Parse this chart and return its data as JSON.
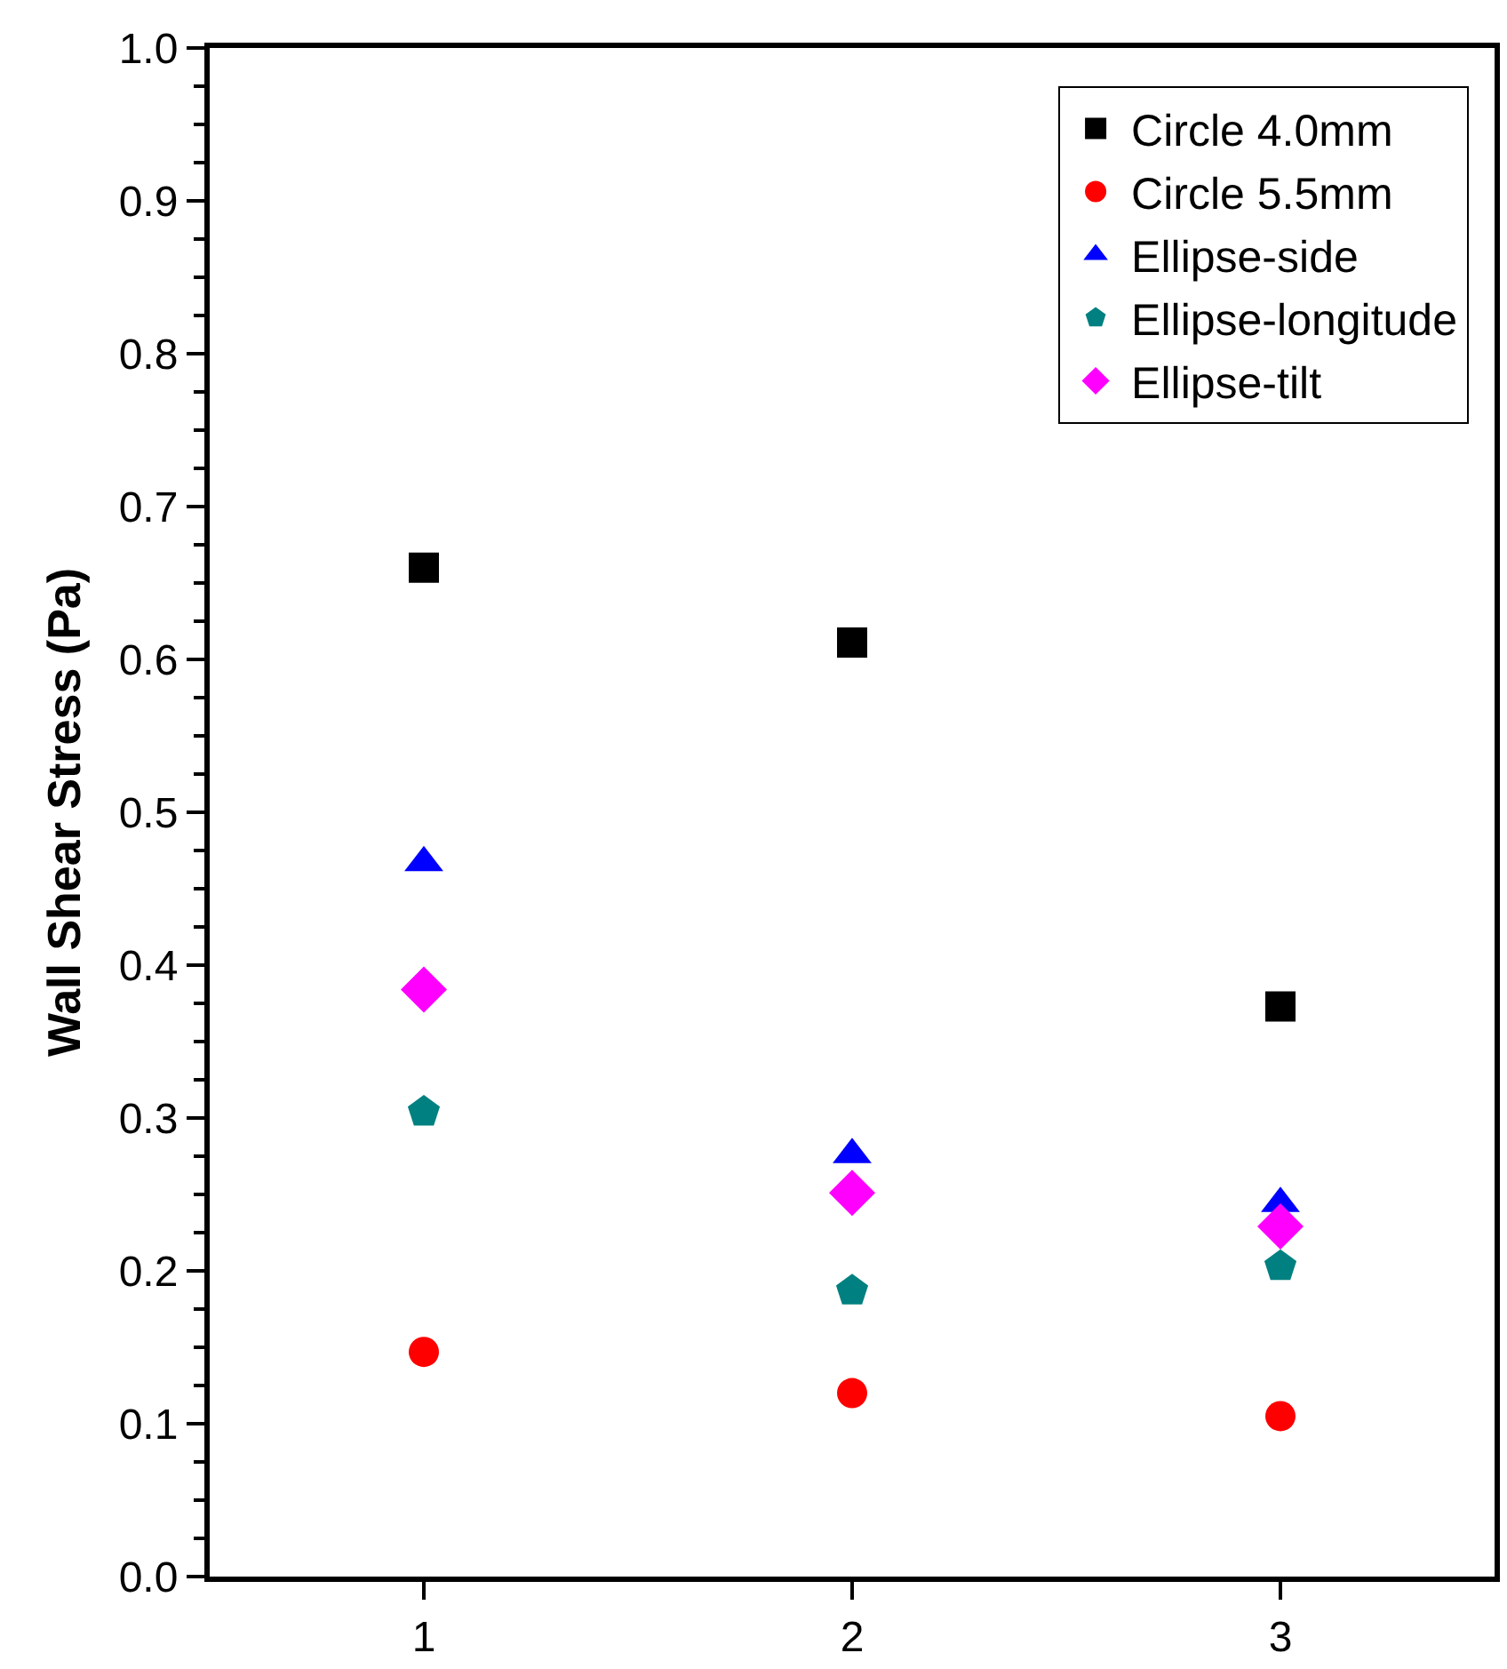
{
  "chart_data": {
    "type": "scatter",
    "ylabel": "Wall Shear Stress (Pa)",
    "x": [
      1,
      2,
      3
    ],
    "series": [
      {
        "name": "Circle 4.0mm",
        "color": "#000000",
        "marker": "square",
        "values": [
          0.66,
          0.611,
          0.373
        ]
      },
      {
        "name": "Circle 5.5mm",
        "color": "#ff0000",
        "marker": "circle",
        "values": [
          0.147,
          0.12,
          0.105
        ]
      },
      {
        "name": "Ellipse-side",
        "color": "#0000ff",
        "marker": "triangle",
        "values": [
          0.467,
          0.276,
          0.244
        ]
      },
      {
        "name": "Ellipse-longitude",
        "color": "#008080",
        "values": [
          0.304,
          0.187,
          0.203
        ]
      },
      {
        "name": "Ellipse-tilt",
        "color": "#ff00ff",
        "marker": "diamond",
        "values": [
          0.384,
          0.251,
          0.229
        ]
      }
    ],
    "xlim": [
      0.5,
      3.5
    ],
    "xticks": [
      1,
      2,
      3
    ],
    "ylim": [
      0,
      1.0
    ],
    "yticks": [
      {
        "value": 0,
        "label": "0.0"
      },
      0.1,
      0.2,
      0.3,
      0.4,
      0.5,
      0.6,
      0.7,
      0.8,
      0.9,
      {
        "value": 1.0,
        "label": "1.0"
      }
    ],
    "legend": "top right"
  }
}
